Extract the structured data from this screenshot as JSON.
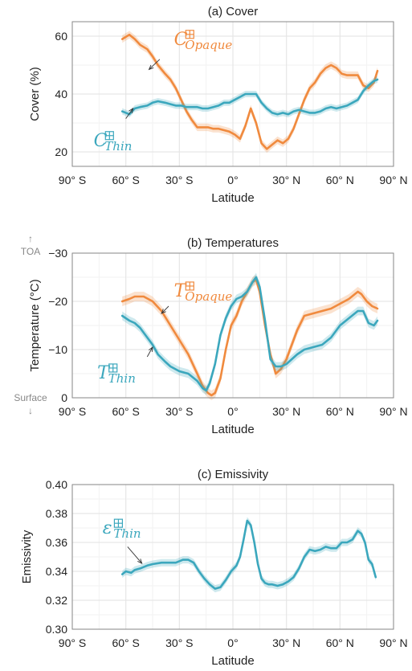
{
  "figure": {
    "xticks": [
      -90,
      -60,
      -30,
      0,
      30,
      60,
      90
    ],
    "xtick_labels": [
      "90° S",
      "60° S",
      "30° S",
      "0°",
      "30° N",
      "60° N",
      "90° N"
    ],
    "colors": {
      "opaque": "#f08a3e",
      "thin": "#3ba7bd",
      "grid": "#e6e6e6",
      "frame": "#8a8a8a"
    }
  },
  "chart_data": [
    {
      "type": "line",
      "title": "(a) Cover",
      "xlabel": "Latitude",
      "ylabel": "Cover (%)",
      "xlim": [
        -90,
        90
      ],
      "ylim": [
        15,
        65
      ],
      "yticks": [
        20,
        40,
        60
      ],
      "grid": true,
      "series": [
        {
          "key": "opaque",
          "color": "#f08a3e",
          "x": [
            -62,
            -58,
            -55,
            -52,
            -48,
            -45,
            -42,
            -38,
            -35,
            -32,
            -29,
            -26,
            -23,
            -20,
            -17,
            -14,
            -11,
            -8,
            -5,
            -2,
            1,
            4,
            7,
            10,
            13,
            16,
            19,
            22,
            25,
            28,
            31,
            34,
            37,
            40,
            43,
            46,
            49,
            52,
            55,
            58,
            61,
            64,
            67,
            70,
            73,
            76,
            79,
            81
          ],
          "y": [
            59,
            60.5,
            59,
            57,
            55.5,
            53,
            50,
            47,
            45,
            42,
            38,
            34,
            31,
            28.5,
            28.5,
            28.5,
            28,
            28,
            27.5,
            27,
            26,
            24.5,
            29,
            35,
            30,
            23,
            21,
            22.5,
            24,
            23,
            24.5,
            28,
            33,
            38,
            42,
            44,
            47,
            49,
            50,
            49,
            47,
            46.5,
            46.5,
            46.5,
            43,
            42,
            44,
            48
          ],
          "band": 1.3
        },
        {
          "key": "thin",
          "color": "#3ba7bd",
          "x": [
            -62,
            -58,
            -55,
            -52,
            -48,
            -45,
            -42,
            -38,
            -35,
            -32,
            -29,
            -26,
            -23,
            -20,
            -17,
            -14,
            -11,
            -8,
            -5,
            -2,
            1,
            4,
            7,
            10,
            13,
            16,
            19,
            22,
            25,
            28,
            31,
            34,
            37,
            40,
            43,
            46,
            49,
            52,
            55,
            58,
            61,
            64,
            67,
            70,
            73,
            76,
            79,
            81
          ],
          "y": [
            34,
            33,
            35,
            35.5,
            36,
            37,
            37.5,
            37,
            36.5,
            36,
            36,
            35.5,
            35.5,
            35.5,
            35,
            35,
            35.5,
            36,
            37,
            37,
            38,
            39,
            40,
            40,
            40,
            37,
            35,
            33.5,
            33,
            33.5,
            33,
            34,
            34.5,
            34,
            33.5,
            33.5,
            34,
            35,
            35.5,
            35,
            35.5,
            36,
            37,
            38,
            41,
            43,
            44.5,
            45
          ],
          "band": 1.1
        }
      ],
      "annotations": [
        {
          "key": "opaque",
          "base": "C",
          "sub": "Opaque",
          "color": "#f08a3e",
          "label_x": -33,
          "label_y": 57,
          "arrow_to_x": -47,
          "arrow_to_y": 48.5,
          "from_x": -41,
          "from_y": 52
        },
        {
          "key": "thin",
          "base": "C",
          "sub": "Thin",
          "color": "#3ba7bd",
          "label_x": -78,
          "label_y": 22,
          "arrow_to_x": -56,
          "arrow_to_y": 35,
          "from_x": -60,
          "from_y": 31.5
        }
      ]
    },
    {
      "type": "line",
      "title": "(b) Temperatures",
      "xlabel": "Latitude",
      "ylabel": "Temperature (°C)",
      "xlim": [
        -90,
        90
      ],
      "ylim": [
        0,
        -30
      ],
      "yticks": [
        -30,
        -20,
        -10,
        0
      ],
      "ytick_labels": [
        "−30",
        "−20",
        "−10",
        "0"
      ],
      "side_labels": {
        "top": "TOA",
        "bottom": "Surface",
        "top_arrow": "↑",
        "bottom_arrow": "↓"
      },
      "grid": true,
      "series": [
        {
          "key": "opaque",
          "color": "#f08a3e",
          "x": [
            -62,
            -58,
            -55,
            -50,
            -45,
            -40,
            -35,
            -30,
            -25,
            -20,
            -17,
            -14,
            -12,
            -10,
            -7,
            -4,
            -1,
            2,
            5,
            8,
            11,
            13,
            15,
            18,
            21,
            24,
            27,
            30,
            33,
            36,
            40,
            45,
            50,
            55,
            60,
            65,
            70,
            72,
            75,
            78,
            81
          ],
          "y": [
            -20,
            -20.5,
            -21,
            -21,
            -20,
            -18,
            -15,
            -12,
            -9,
            -5,
            -2.5,
            -1,
            -0.5,
            -1,
            -4,
            -10,
            -15,
            -17,
            -20,
            -22,
            -24,
            -24.5,
            -22,
            -15,
            -9,
            -5,
            -6,
            -8,
            -11,
            -14,
            -17,
            -17.5,
            -18,
            -18.5,
            -19.5,
            -20.5,
            -22,
            -21.5,
            -20,
            -19,
            -18.5
          ],
          "band": 1.0
        },
        {
          "key": "thin",
          "color": "#3ba7bd",
          "x": [
            -62,
            -58,
            -55,
            -52,
            -48,
            -45,
            -42,
            -38,
            -35,
            -30,
            -25,
            -20,
            -17,
            -15,
            -13,
            -10,
            -7,
            -4,
            -1,
            2,
            5,
            8,
            11,
            13,
            15,
            18,
            21,
            24,
            27,
            30,
            33,
            36,
            40,
            45,
            50,
            55,
            60,
            65,
            70,
            73,
            76,
            79,
            81
          ],
          "y": [
            -17,
            -16,
            -15.5,
            -14.5,
            -12.5,
            -11,
            -9,
            -7.5,
            -6.5,
            -5.5,
            -5,
            -3.5,
            -2,
            -1.5,
            -3,
            -7,
            -13,
            -16.5,
            -19,
            -20.5,
            -21,
            -22,
            -24,
            -25,
            -23,
            -16,
            -8,
            -6.5,
            -6.5,
            -7,
            -8,
            -9,
            -10,
            -10.5,
            -11,
            -12.5,
            -15,
            -16.5,
            -18,
            -18,
            -15.5,
            -15,
            -16
          ],
          "band": 0.9
        }
      ],
      "annotations": [
        {
          "key": "opaque",
          "base": "T",
          "sub": "Opaque",
          "color": "#f08a3e",
          "label_x": -33,
          "label_y": -21,
          "arrow_to_x": -40,
          "arrow_to_y": -17.5,
          "from_x": -36,
          "from_y": -19
        },
        {
          "key": "thin",
          "base": "T",
          "sub": "Thin",
          "color": "#3ba7bd",
          "label_x": -76,
          "label_y": -4,
          "arrow_to_x": -45,
          "arrow_to_y": -10.5,
          "from_x": -48,
          "from_y": -8.5
        }
      ]
    },
    {
      "type": "line",
      "title": "(c) Emissivity",
      "xlabel": "Latitude",
      "ylabel": "Emissivity",
      "xlim": [
        -90,
        90
      ],
      "ylim": [
        0.3,
        0.4
      ],
      "yticks": [
        0.3,
        0.32,
        0.34,
        0.36,
        0.38,
        0.4
      ],
      "ytick_labels": [
        "0.30",
        "0.32",
        "0.34",
        "0.36",
        "0.38",
        "0.40"
      ],
      "grid": true,
      "series": [
        {
          "key": "thin",
          "color": "#3ba7bd",
          "x": [
            -62,
            -60,
            -57,
            -55,
            -52,
            -48,
            -45,
            -40,
            -36,
            -32,
            -28,
            -25,
            -22,
            -19,
            -16,
            -13,
            -10,
            -7,
            -4,
            -1,
            2,
            4,
            6,
            8,
            10,
            12,
            14,
            16,
            18,
            20,
            22,
            25,
            28,
            31,
            34,
            37,
            40,
            43,
            46,
            49,
            52,
            55,
            58,
            61,
            64,
            67,
            70,
            72,
            74,
            76,
            78,
            80
          ],
          "y": [
            0.338,
            0.34,
            0.339,
            0.341,
            0.342,
            0.344,
            0.345,
            0.346,
            0.346,
            0.346,
            0.348,
            0.348,
            0.346,
            0.34,
            0.335,
            0.331,
            0.328,
            0.329,
            0.334,
            0.34,
            0.344,
            0.35,
            0.362,
            0.375,
            0.372,
            0.36,
            0.345,
            0.335,
            0.332,
            0.331,
            0.331,
            0.33,
            0.331,
            0.333,
            0.336,
            0.342,
            0.35,
            0.355,
            0.354,
            0.355,
            0.357,
            0.356,
            0.356,
            0.36,
            0.36,
            0.362,
            0.368,
            0.366,
            0.36,
            0.348,
            0.345,
            0.336
          ],
          "band": 0.0025
        }
      ],
      "annotations": [
        {
          "key": "thin",
          "base": "ε",
          "sub": "Thin",
          "color": "#3ba7bd",
          "label_x": -73,
          "label_y": 0.366,
          "arrow_to_x": -51,
          "arrow_to_y": 0.3455,
          "from_x": -59,
          "from_y": 0.357
        }
      ]
    }
  ]
}
